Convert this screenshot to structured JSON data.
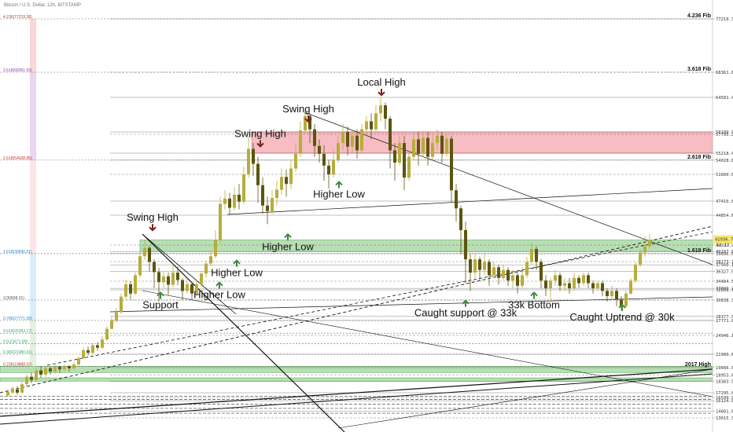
{
  "header": {
    "text": "Bitcoin / U.S. Dollar, 12h, BITSTAMP"
  },
  "colors": {
    "candle_up": "#b7ad3c",
    "candle_down": "#5c5510",
    "zone_red": "#f4a7ad",
    "zone_green": "#9fd49a",
    "arrow_green": "#3d8a3d",
    "arrow_red": "#7a1f1f"
  },
  "chart_data": {
    "type": "candlestick",
    "y_axis_side": "right",
    "price_ticks": [
      "77219.38",
      "68361.69",
      "64581.41",
      "58109.96",
      "57795.20",
      "55218.46",
      "54028.85",
      "51600.00",
      "47410.00",
      "44854.63",
      "41337.96",
      "40107.64",
      "39696.01",
      "38173.73",
      "37560.18",
      "36327.50",
      "34484.50",
      "33099.24",
      "32808.71",
      "30838.31",
      "28377.94",
      "27771.08",
      "24946.18",
      "21980.61",
      "19666.00",
      "18953.00",
      "18383.55",
      "17295.00",
      "16599.99",
      "16124.00",
      "14601.00",
      "13615.35"
    ],
    "current_price": {
      "value": "41936.71",
      "sub": "5d:11"
    },
    "fib_right": [
      {
        "label": "4.236 Fib",
        "price": 77219.38
      },
      {
        "label": "3.618 Fib",
        "price": 68361.69
      },
      {
        "label": "2.618 Fib",
        "price": 54028.85
      },
      {
        "label": "1.618 Fib",
        "price": 39696.01
      },
      {
        "label": "2017 High",
        "price": 19666.0
      }
    ],
    "fib_left": [
      {
        "label": "4.236(77219.38)",
        "price": 77219.38,
        "color": "#c0392b"
      },
      {
        "label": "3.618(68361.69)",
        "price": 68361.69,
        "color": "#8e44ad"
      },
      {
        "label": "2.618(54028.85)",
        "price": 54028.85,
        "color": "#c0392b"
      },
      {
        "label": "1.618(39696.01)",
        "price": 39696.01,
        "color": "#2e86c1"
      },
      {
        "label": "1(30838.31)",
        "price": 30838.31,
        "color": "#555555"
      },
      {
        "label": "0.786(27771.08)",
        "price": 27771.08,
        "color": "#2e86c1"
      },
      {
        "label": "0.618(25363.17)",
        "price": 25363.17,
        "color": "#27ae60"
      },
      {
        "label": "0.5(23671.89)",
        "price": 23671.89,
        "color": "#27ae60"
      },
      {
        "label": "0.382(21980.61)",
        "price": 21980.61,
        "color": "#27ae60"
      },
      {
        "label": "0.236(19888.02)",
        "price": 19888.02,
        "color": "#c0392b"
      }
    ],
    "annotations": [
      {
        "text": "Local High",
        "x": 485,
        "price": 66100,
        "arrow": "down",
        "color": "red"
      },
      {
        "text": "Swing High",
        "x": 392,
        "price": 61500,
        "arrow": "down",
        "color": "red"
      },
      {
        "text": "Swing High",
        "x": 331,
        "price": 57200,
        "arrow": "down",
        "color": "red"
      },
      {
        "text": "Swing High",
        "x": 194,
        "price": 44000,
        "arrow": "down",
        "color": "red"
      },
      {
        "text": "Higher Low",
        "x": 431,
        "price": 48700,
        "arrow": "up",
        "color": "green"
      },
      {
        "text": "Higher Low",
        "x": 366,
        "price": 41300,
        "arrow": "up",
        "color": "green"
      },
      {
        "text": "Higher Low",
        "x": 301,
        "price": 36300,
        "arrow": "up",
        "color": "green"
      },
      {
        "text": "Higher Low",
        "x": 279,
        "price": 32100,
        "arrow": "up",
        "color": "green"
      },
      {
        "text": "Support",
        "x": 204,
        "price": 30300,
        "arrow": "up",
        "color": "green"
      },
      {
        "text": "Caught support @ 33k",
        "x": 592,
        "price": 29100,
        "arrow": "up",
        "color": "green"
      },
      {
        "text": "33k Bottom",
        "x": 679,
        "price": 30300,
        "arrow": "up",
        "color": "green"
      },
      {
        "text": "Caught Uptrend @ 30k",
        "x": 791,
        "price": 28500,
        "arrow": "up",
        "color": "green"
      }
    ],
    "zones": [
      {
        "type": "resistance",
        "from": 55218.46,
        "to": 58109.96,
        "x_start": 320
      },
      {
        "type": "support",
        "from": 40107.64,
        "to": 41937,
        "x_start": 178
      },
      {
        "type": "support",
        "from": 19200,
        "to": 19900,
        "x_start": 0
      },
      {
        "type": "support",
        "from": 18383.55,
        "to": 18700,
        "x_start": 0
      }
    ],
    "candles": [
      [
        10,
        16900,
        17400,
        16700,
        17600
      ],
      [
        16,
        17300,
        17700,
        17100,
        17900
      ],
      [
        22,
        17600,
        17300,
        17000,
        17900
      ],
      [
        28,
        17300,
        18100,
        17200,
        18300
      ],
      [
        34,
        18100,
        18800,
        17900,
        19000
      ],
      [
        40,
        18800,
        18500,
        18200,
        19200
      ],
      [
        46,
        18500,
        19400,
        18300,
        19700
      ],
      [
        52,
        19400,
        19000,
        18700,
        19900
      ],
      [
        58,
        19000,
        19600,
        18800,
        19900
      ],
      [
        64,
        19600,
        19300,
        19000,
        19800
      ],
      [
        70,
        19300,
        19800,
        19100,
        20100
      ],
      [
        76,
        19800,
        19500,
        19200,
        20000
      ],
      [
        82,
        19500,
        19900,
        19300,
        20200
      ],
      [
        88,
        19900,
        19600,
        19300,
        20100
      ],
      [
        94,
        19600,
        20200,
        19400,
        20600
      ],
      [
        100,
        20200,
        21300,
        20000,
        21600
      ],
      [
        106,
        21300,
        22600,
        21100,
        23000
      ],
      [
        112,
        22600,
        22200,
        21800,
        23200
      ],
      [
        118,
        22200,
        23400,
        22000,
        23800
      ],
      [
        124,
        23400,
        23000,
        22500,
        23900
      ],
      [
        130,
        23000,
        24300,
        22800,
        24800
      ],
      [
        136,
        24300,
        26200,
        24100,
        26700
      ],
      [
        142,
        26200,
        27800,
        26000,
        28300
      ],
      [
        148,
        27800,
        29000,
        27400,
        29600
      ],
      [
        154,
        29000,
        31500,
        28800,
        32100
      ],
      [
        160,
        31500,
        33900,
        31000,
        34800
      ],
      [
        166,
        33900,
        32100,
        31000,
        34500
      ],
      [
        172,
        32100,
        35600,
        31800,
        36200
      ],
      [
        178,
        35600,
        39200,
        35200,
        40100
      ],
      [
        184,
        39200,
        40800,
        38500,
        41900
      ],
      [
        190,
        40800,
        38100,
        36300,
        41200
      ],
      [
        196,
        38100,
        36200,
        33200,
        38600
      ],
      [
        202,
        36200,
        34300,
        30600,
        37000
      ],
      [
        208,
        34300,
        35400,
        33100,
        36300
      ],
      [
        214,
        35400,
        33800,
        31800,
        36100
      ],
      [
        220,
        33800,
        36100,
        33300,
        37700
      ],
      [
        226,
        36100,
        34700,
        33700,
        37300
      ],
      [
        232,
        34700,
        32600,
        30900,
        35100
      ],
      [
        238,
        32600,
        33900,
        32100,
        35000
      ],
      [
        244,
        33900,
        32100,
        30800,
        34400
      ],
      [
        250,
        32100,
        33900,
        31700,
        34700
      ],
      [
        256,
        33900,
        35900,
        33400,
        36400
      ],
      [
        262,
        35900,
        37800,
        35200,
        38400
      ],
      [
        268,
        37800,
        39200,
        37300,
        40100
      ],
      [
        274,
        39200,
        41900,
        38800,
        43100
      ],
      [
        280,
        41900,
        46900,
        41600,
        48100
      ],
      [
        286,
        46900,
        47800,
        45900,
        49100
      ],
      [
        292,
        47800,
        46200,
        44900,
        48700
      ],
      [
        298,
        46200,
        48400,
        45700,
        49600
      ],
      [
        304,
        48400,
        47300,
        45900,
        50100
      ],
      [
        310,
        47300,
        51600,
        46900,
        52900
      ],
      [
        316,
        51600,
        55800,
        51100,
        57600
      ],
      [
        322,
        55800,
        53400,
        51400,
        56600
      ],
      [
        328,
        53400,
        49900,
        47100,
        54600
      ],
      [
        334,
        49900,
        46600,
        45100,
        51100
      ],
      [
        340,
        46600,
        45600,
        43800,
        48100
      ],
      [
        346,
        45600,
        47900,
        45100,
        49100
      ],
      [
        352,
        47900,
        49200,
        46600,
        50600
      ],
      [
        358,
        49200,
        51200,
        48400,
        52600
      ],
      [
        364,
        51200,
        50100,
        48100,
        52400
      ],
      [
        370,
        50100,
        52600,
        49300,
        54100
      ],
      [
        376,
        52600,
        55100,
        52100,
        56600
      ],
      [
        382,
        55100,
        58400,
        54600,
        60100
      ],
      [
        388,
        58400,
        61100,
        57900,
        62100
      ],
      [
        394,
        61100,
        58600,
        56600,
        61600
      ],
      [
        400,
        58600,
        56200,
        54600,
        59600
      ],
      [
        406,
        56200,
        55100,
        53600,
        57100
      ],
      [
        412,
        55100,
        53100,
        50600,
        56300
      ],
      [
        418,
        53100,
        51600,
        49400,
        54100
      ],
      [
        424,
        51600,
        54100,
        51100,
        55600
      ],
      [
        430,
        54100,
        56600,
        53600,
        57600
      ],
      [
        436,
        56600,
        58100,
        55600,
        59600
      ],
      [
        442,
        58100,
        56100,
        54800,
        59100
      ],
      [
        448,
        56100,
        57600,
        55300,
        58600
      ],
      [
        454,
        57600,
        55600,
        54300,
        58600
      ],
      [
        460,
        55600,
        58600,
        55100,
        59600
      ],
      [
        466,
        58600,
        60100,
        57600,
        61100
      ],
      [
        472,
        60100,
        58600,
        57100,
        61600
      ],
      [
        478,
        58600,
        61600,
        58100,
        63100
      ],
      [
        484,
        61600,
        63100,
        60100,
        64581
      ],
      [
        490,
        63100,
        60600,
        58600,
        63600
      ],
      [
        496,
        60600,
        55600,
        52600,
        61100
      ],
      [
        502,
        55600,
        53600,
        50600,
        56600
      ],
      [
        508,
        53600,
        56600,
        53100,
        57600
      ],
      [
        514,
        56600,
        51100,
        49100,
        57600
      ],
      [
        520,
        51100,
        54600,
        50600,
        55600
      ],
      [
        526,
        54600,
        57100,
        54100,
        58100
      ],
      [
        532,
        57100,
        55100,
        53100,
        58100
      ],
      [
        538,
        55100,
        57300,
        54600,
        58300
      ],
      [
        544,
        57300,
        54600,
        53100,
        58100
      ],
      [
        550,
        54600,
        56600,
        54100,
        57800
      ],
      [
        556,
        56600,
        57600,
        55600,
        58600
      ],
      [
        562,
        57600,
        55100,
        53600,
        58100
      ],
      [
        568,
        55100,
        57200,
        54600,
        57900
      ],
      [
        574,
        57200,
        49100,
        47100,
        57600
      ],
      [
        580,
        49100,
        46100,
        44100,
        50100
      ],
      [
        586,
        46100,
        43100,
        39600,
        46600
      ],
      [
        592,
        43100,
        38600,
        34100,
        44100
      ],
      [
        598,
        38600,
        36100,
        32600,
        39600
      ],
      [
        604,
        36100,
        38600,
        35100,
        39700
      ],
      [
        610,
        38600,
        36600,
        34600,
        39100
      ],
      [
        616,
        36600,
        38100,
        35600,
        39600
      ],
      [
        622,
        38100,
        35600,
        33600,
        38600
      ],
      [
        628,
        35600,
        37100,
        35100,
        38100
      ],
      [
        634,
        37100,
        35100,
        33800,
        37600
      ],
      [
        640,
        35100,
        36600,
        34600,
        37600
      ],
      [
        646,
        36600,
        34600,
        33600,
        37100
      ],
      [
        652,
        34600,
        35600,
        33100,
        36600
      ],
      [
        658,
        35600,
        33600,
        32100,
        36100
      ],
      [
        664,
        33600,
        35600,
        33100,
        37100
      ],
      [
        670,
        35600,
        38100,
        35100,
        39100
      ],
      [
        676,
        38100,
        40600,
        37600,
        41600
      ],
      [
        682,
        40600,
        38100,
        36600,
        41100
      ],
      [
        688,
        38100,
        34600,
        33100,
        38600
      ],
      [
        694,
        34600,
        33100,
        31600,
        35600
      ],
      [
        700,
        33100,
        34600,
        30600,
        35100
      ],
      [
        706,
        34600,
        35600,
        33600,
        36600
      ],
      [
        712,
        35600,
        33600,
        32600,
        36100
      ],
      [
        718,
        33600,
        34100,
        32600,
        35100
      ],
      [
        724,
        34100,
        33100,
        32100,
        35100
      ],
      [
        730,
        33100,
        35100,
        32600,
        36100
      ],
      [
        736,
        35100,
        34100,
        33100,
        35600
      ],
      [
        742,
        34100,
        35600,
        33600,
        36100
      ],
      [
        748,
        35600,
        34100,
        33100,
        36100
      ],
      [
        754,
        34100,
        33100,
        32100,
        34600
      ],
      [
        760,
        33100,
        34100,
        32600,
        34600
      ],
      [
        766,
        34100,
        32600,
        31600,
        34600
      ],
      [
        772,
        32600,
        31600,
        30600,
        33100
      ],
      [
        778,
        31600,
        32600,
        30900,
        33600
      ],
      [
        784,
        32600,
        30900,
        29900,
        33100
      ],
      [
        790,
        30900,
        29900,
        29200,
        31600
      ],
      [
        796,
        29900,
        32100,
        29600,
        32600
      ],
      [
        802,
        32100,
        34600,
        31900,
        35100
      ],
      [
        808,
        34600,
        37600,
        34100,
        38100
      ],
      [
        814,
        37600,
        39900,
        37100,
        40600
      ],
      [
        820,
        39900,
        41100,
        39100,
        42400
      ],
      [
        826,
        41100,
        41937,
        40600,
        42600
      ]
    ]
  }
}
